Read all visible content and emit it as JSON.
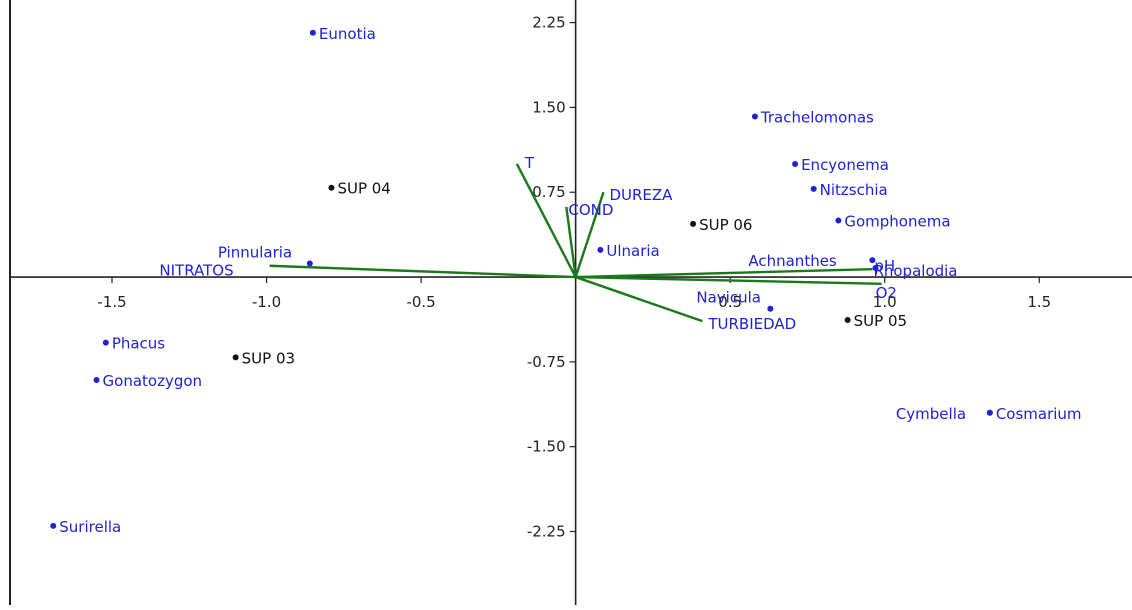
{
  "chart_data": {
    "type": "scatter",
    "title": "",
    "xlabel": "",
    "ylabel": "",
    "xlim": [
      -1.83,
      1.8
    ],
    "ylim": [
      -2.9,
      2.45
    ],
    "x_ticks": [
      -1.5,
      -1.0,
      -0.5,
      0.5,
      1.0,
      1.5
    ],
    "x_tick_labels": [
      "-1.5",
      "-1.0",
      "-0.5",
      "0.5",
      "1.0",
      "1.5"
    ],
    "y_ticks": [
      2.25,
      1.5,
      0.75,
      -0.75,
      -1.5,
      -2.25
    ],
    "y_tick_labels": [
      "2.25",
      "1.50",
      "0.75",
      "-0.75",
      "-1.50",
      "-2.25"
    ],
    "grid": false,
    "colors": {
      "taxa": "#1f22d6",
      "sites": "#111111",
      "vectors": "#1a7a1a",
      "axes": "#222222"
    },
    "vectors": [
      {
        "label": "T",
        "x": -0.19,
        "y": 1.0
      },
      {
        "label": "DUREZA",
        "x": 0.09,
        "y": 0.75
      },
      {
        "label": "COND",
        "x": -0.03,
        "y": 0.62
      },
      {
        "label": "NITRATOS",
        "x": -0.99,
        "y": 0.1
      },
      {
        "label": "pH",
        "x": 0.96,
        "y": 0.07
      },
      {
        "label": "O2",
        "x": 0.99,
        "y": -0.06
      },
      {
        "label": "TURBIEDAD",
        "x": 0.41,
        "y": -0.39
      }
    ],
    "taxa": [
      {
        "label": "Eunotia",
        "x": -0.85,
        "y": 2.16
      },
      {
        "label": "Trachelomonas",
        "x": 0.58,
        "y": 1.42
      },
      {
        "label": "Encyonema",
        "x": 0.71,
        "y": 1.0
      },
      {
        "label": "Nitzschia",
        "x": 0.77,
        "y": 0.78
      },
      {
        "label": "Gomphonema",
        "x": 0.85,
        "y": 0.5
      },
      {
        "label": "Pinnularia",
        "x": -0.86,
        "y": 0.12
      },
      {
        "label": "Ulnaria",
        "x": 0.08,
        "y": 0.24
      },
      {
        "label": "Achnanthes",
        "x": 0.96,
        "y": 0.15
      },
      {
        "label": "Rhopalodia",
        "x": 0.97,
        "y": 0.08
      },
      {
        "label": "Navicula",
        "x": 0.63,
        "y": -0.28
      },
      {
        "label": "Phacus",
        "x": -1.52,
        "y": -0.58
      },
      {
        "label": "Gonatozygon",
        "x": -1.55,
        "y": -0.91
      },
      {
        "label": "Cymbella",
        "x": 1.34,
        "y": -1.2
      },
      {
        "label": "Cosmarium",
        "x": 1.34,
        "y": -1.2
      },
      {
        "label": "Surirella",
        "x": -1.69,
        "y": -2.2
      }
    ],
    "sites": [
      {
        "label": "SUP 04",
        "x": -0.79,
        "y": 0.79
      },
      {
        "label": "SUP 06",
        "x": 0.38,
        "y": 0.47
      },
      {
        "label": "SUP 05",
        "x": 0.88,
        "y": -0.38
      },
      {
        "label": "SUP 03",
        "x": -1.1,
        "y": -0.71
      }
    ]
  }
}
